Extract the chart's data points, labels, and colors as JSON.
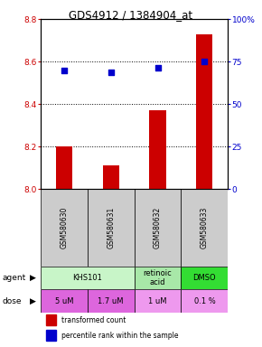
{
  "title": "GDS4912 / 1384904_at",
  "samples": [
    "GSM580630",
    "GSM580631",
    "GSM580632",
    "GSM580633"
  ],
  "bar_values": [
    8.2,
    8.11,
    8.37,
    8.73
  ],
  "dot_values": [
    8.56,
    8.55,
    8.57,
    8.6
  ],
  "bar_color": "#cc0000",
  "dot_color": "#0000cc",
  "ylim_left": [
    8.0,
    8.8
  ],
  "ylim_right": [
    0,
    100
  ],
  "yticks_left": [
    8.0,
    8.2,
    8.4,
    8.6,
    8.8
  ],
  "yticks_right": [
    0,
    25,
    50,
    75,
    100
  ],
  "ytick_labels_right": [
    "0",
    "25",
    "50",
    "75",
    "100%"
  ],
  "hlines": [
    8.2,
    8.4,
    8.6
  ],
  "agent_spans": [
    [
      0,
      2,
      "KHS101",
      "#c8f5c8"
    ],
    [
      2,
      3,
      "retinoic\nacid",
      "#a8e8a8"
    ],
    [
      3,
      4,
      "DMSO",
      "#33dd33"
    ]
  ],
  "dose_labels": [
    "5 uM",
    "1.7 uM",
    "1 uM",
    "0.1 %"
  ],
  "dose_colors": [
    "#dd66dd",
    "#dd66dd",
    "#ee99ee",
    "#ee99ee"
  ],
  "sample_bg_color": "#cccccc",
  "legend_bar_label": "transformed count",
  "legend_dot_label": "percentile rank within the sample",
  "bar_width": 0.35,
  "dot_size": 25
}
